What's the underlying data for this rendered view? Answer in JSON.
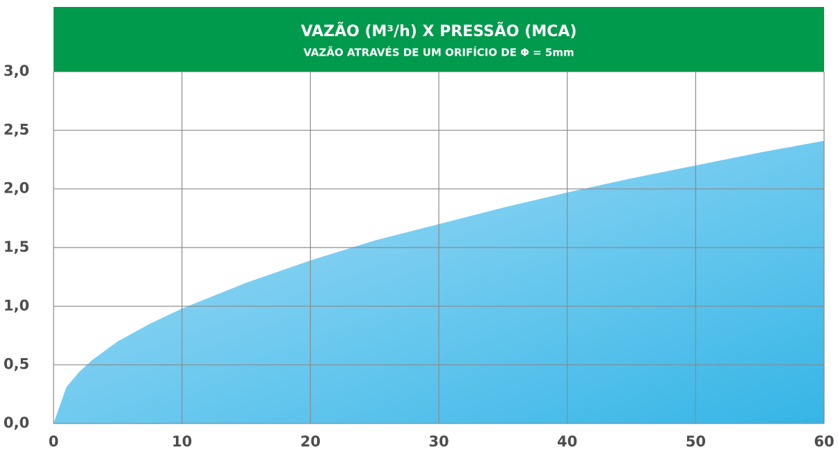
{
  "chart_data": {
    "type": "area",
    "title": "VAZÃO (M³/h) X PRESSÃO (MCA)",
    "subtitle": "VAZÃO ATRAVÉS DE UM ORIFÍCIO DE Φ = 5mm",
    "x": [
      0,
      1,
      2,
      3,
      4,
      5,
      7.5,
      10,
      15,
      20,
      25,
      30,
      35,
      40,
      45,
      50,
      55,
      60
    ],
    "values": [
      0,
      0.31,
      0.44,
      0.54,
      0.62,
      0.7,
      0.85,
      0.98,
      1.2,
      1.39,
      1.56,
      1.7,
      1.84,
      1.97,
      2.09,
      2.2,
      2.31,
      2.41
    ],
    "color": "#5cc3ec",
    "xlim": [
      0,
      60
    ],
    "xticks": [
      0,
      10,
      20,
      30,
      40,
      50,
      60
    ],
    "ylim": [
      0,
      3
    ],
    "yticks": [
      {
        "value": 0,
        "label": "0,0"
      },
      {
        "value": 0.5,
        "label": "0,5"
      },
      {
        "value": 1,
        "label": "1,0"
      },
      {
        "value": 1.5,
        "label": "1,5"
      },
      {
        "value": 2,
        "label": "2,0"
      },
      {
        "value": 2.5,
        "label": "2,5"
      },
      {
        "value": 3,
        "label": "3,0"
      }
    ],
    "grid": true
  }
}
